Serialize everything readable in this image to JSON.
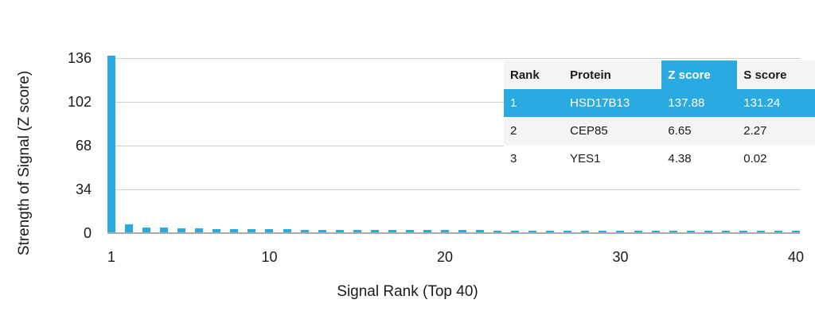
{
  "colors": {
    "bar": "#29ABE2",
    "gridline": "#cccccc",
    "axis_line": "#ababab",
    "text": "#1a1a1a",
    "table_stripe_bg": "#f4f4f4",
    "highlight_text": "#ffffff"
  },
  "chart_data": {
    "type": "bar",
    "title": "",
    "xlabel": "Signal Rank (Top 40)",
    "ylabel": "Strength of Signal (Z score)",
    "x": [
      1,
      2,
      3,
      4,
      5,
      6,
      7,
      8,
      9,
      10,
      11,
      12,
      13,
      14,
      15,
      16,
      17,
      18,
      19,
      20,
      21,
      22,
      23,
      24,
      25,
      26,
      27,
      28,
      29,
      30,
      31,
      32,
      33,
      34,
      35,
      36,
      37,
      38,
      39,
      40
    ],
    "values": [
      137.88,
      6.65,
      4.38,
      4.2,
      3.9,
      3.6,
      3.4,
      3.2,
      3.0,
      2.9,
      2.8,
      2.7,
      2.6,
      2.6,
      2.5,
      2.5,
      2.4,
      2.4,
      2.3,
      2.3,
      2.2,
      2.2,
      2.1,
      2.1,
      2.1,
      2.0,
      2.0,
      2.0,
      1.9,
      1.9,
      1.9,
      1.8,
      1.8,
      1.8,
      1.7,
      1.7,
      1.7,
      1.6,
      1.6,
      1.6
    ],
    "yticks": [
      0,
      34,
      68,
      102,
      136
    ],
    "xticks": [
      1,
      10,
      20,
      30,
      40
    ],
    "ylim": [
      0,
      136
    ],
    "grid": "horizontal",
    "legend": "none"
  },
  "table": {
    "columns": [
      "Rank",
      "Protein",
      "Z score",
      "S score"
    ],
    "highlight_column": "Z score",
    "rows": [
      {
        "rank": "1",
        "protein": "HSD17B13",
        "z": "137.88",
        "s": "131.24",
        "highlighted": true
      },
      {
        "rank": "2",
        "protein": "CEP85",
        "z": "6.65",
        "s": "2.27",
        "highlighted": false
      },
      {
        "rank": "3",
        "protein": "YES1",
        "z": "4.38",
        "s": "0.02",
        "highlighted": false
      }
    ]
  }
}
